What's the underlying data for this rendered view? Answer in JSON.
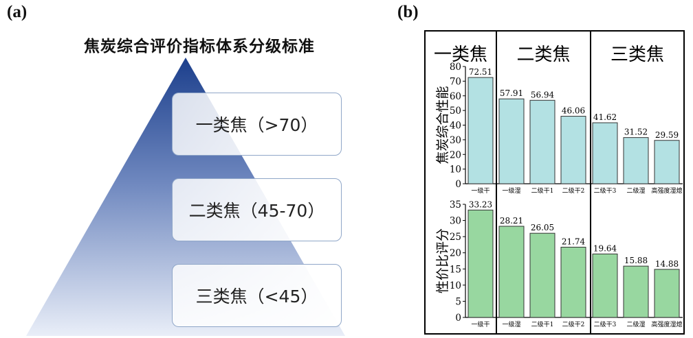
{
  "panel_a": {
    "label": "(a)",
    "title": "焦炭综合评价指标体系分级标准",
    "tiers": [
      "一类焦（>70）",
      "二类焦（45-70）",
      "三类焦（<45）"
    ]
  },
  "panel_b": {
    "label": "(b)"
  },
  "chart_data": {
    "type": "bar",
    "group_headers": [
      "一类焦",
      "二类焦",
      "三类焦"
    ],
    "categories": [
      "一级干",
      "一级湿",
      "二级干1",
      "二级干2",
      "二级干3",
      "二级湿",
      "高强度湿熄"
    ],
    "groups": [
      [
        0
      ],
      [
        1,
        2,
        3
      ],
      [
        4,
        5,
        6
      ]
    ],
    "panels": [
      {
        "ylabel": "焦炭综合性能",
        "ylim": [
          0,
          80
        ],
        "yticks": [
          0,
          10,
          20,
          30,
          40,
          50,
          60,
          70,
          80
        ],
        "values": [
          72.51,
          57.91,
          56.94,
          46.06,
          41.62,
          31.52,
          29.59
        ],
        "value_labels": [
          "72.51",
          "57.91",
          "56.94",
          "46.06",
          "41.62",
          "31.52",
          "29.59"
        ],
        "color": "#b3e1e3"
      },
      {
        "ylabel": "性价比评分",
        "ylim": [
          0,
          35
        ],
        "yticks": [
          0,
          5,
          10,
          15,
          20,
          25,
          30,
          35
        ],
        "values": [
          33.23,
          28.21,
          26.05,
          21.74,
          19.64,
          15.88,
          14.88
        ],
        "value_labels": [
          "33.23",
          "28.21",
          "26.05",
          "21.74",
          "19.64",
          "15.88",
          "14.88"
        ],
        "color": "#98d7a0"
      }
    ]
  }
}
